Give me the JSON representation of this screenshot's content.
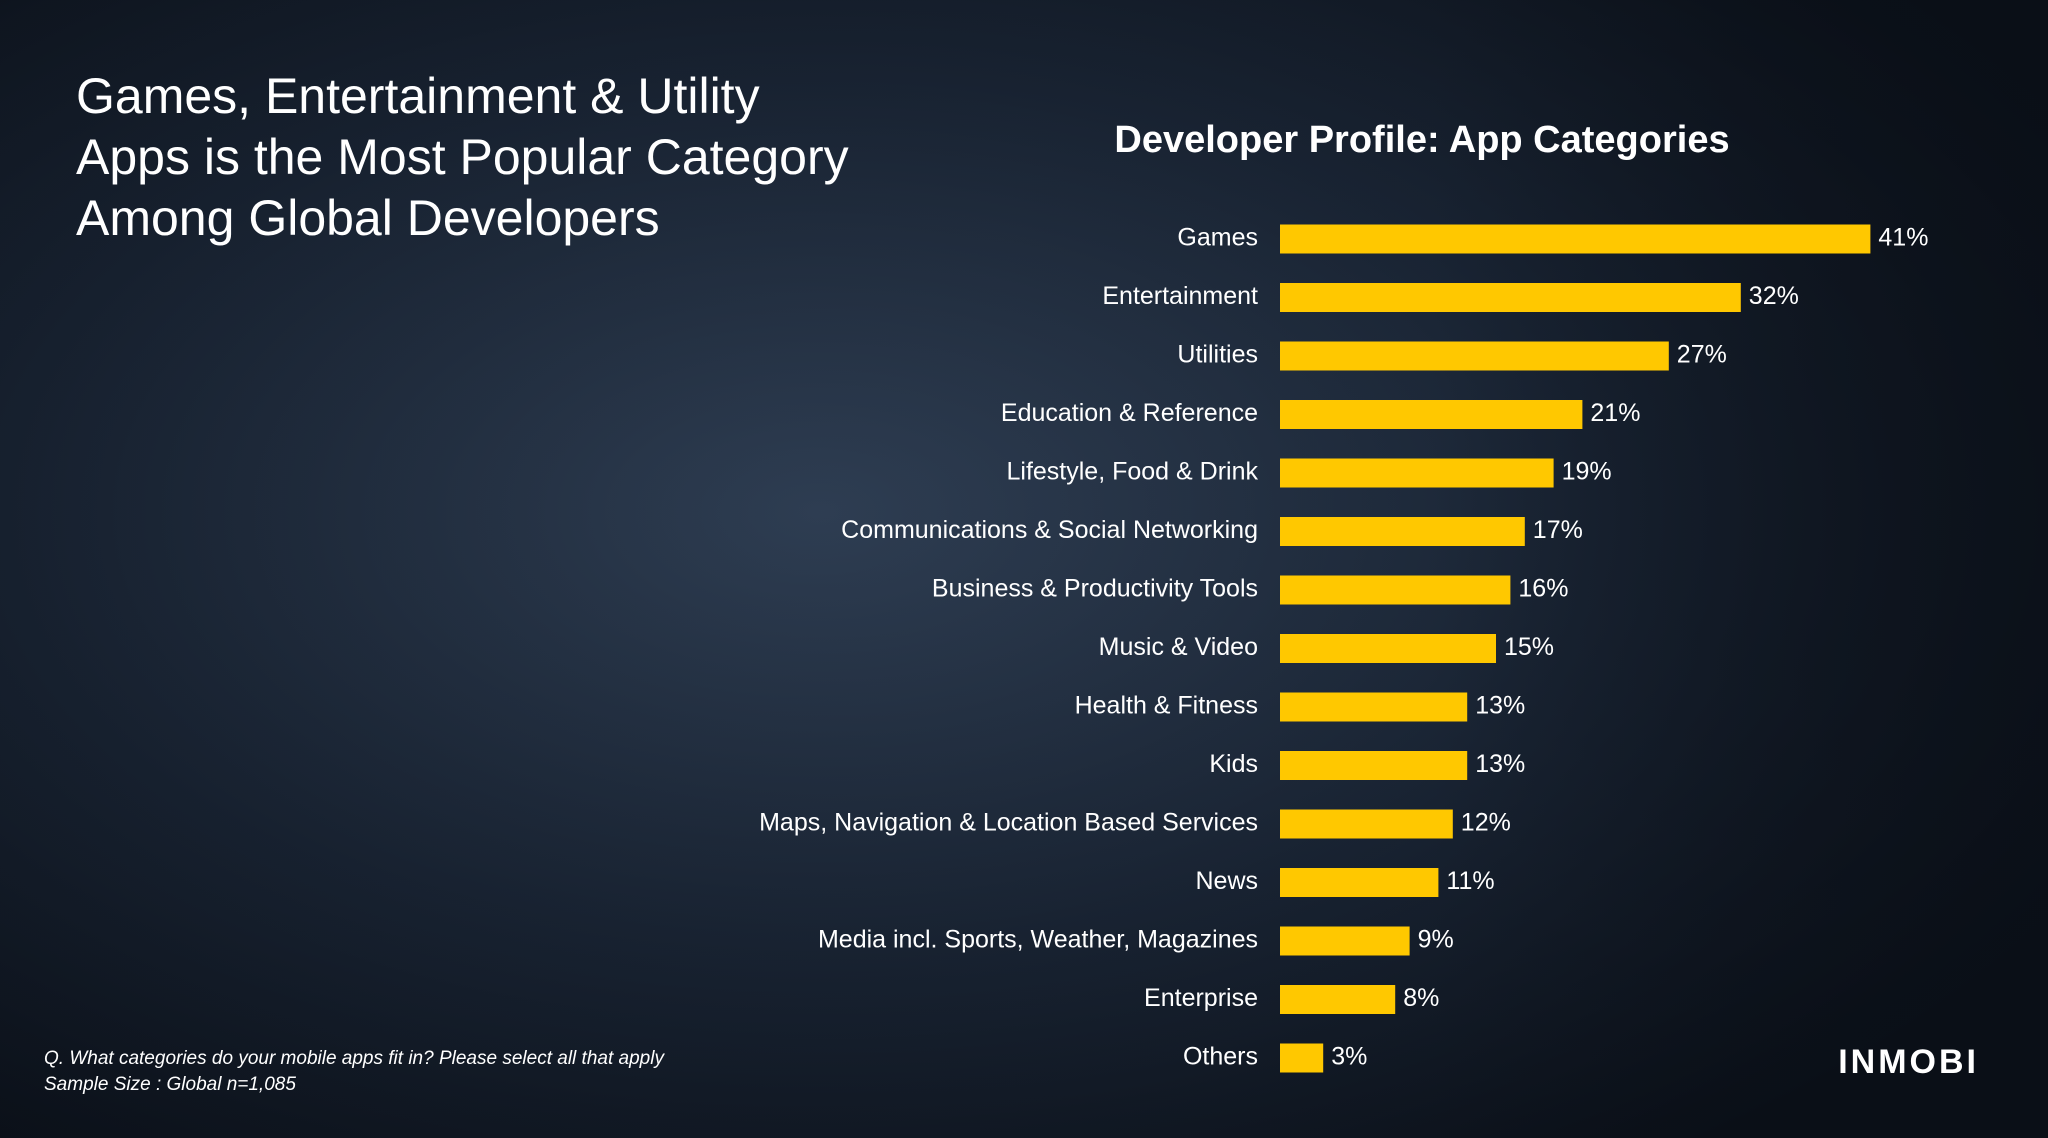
{
  "headline": [
    "Games, Entertainment & Utility",
    "Apps is the Most Popular Category",
    "Among Global Developers"
  ],
  "footnote": [
    "Q. What categories do your mobile apps fit in? Please select all that apply",
    "Sample Size : Global n=1,085"
  ],
  "logo": "INMOBI",
  "chart_data": {
    "type": "bar",
    "orientation": "horizontal",
    "title": "Developer Profile:  App Categories",
    "categories": [
      "Games",
      "Entertainment",
      "Utilities",
      "Education & Reference",
      "Lifestyle, Food & Drink",
      "Communications & Social Networking",
      "Business & Productivity Tools",
      "Music & Video",
      "Health & Fitness",
      "Kids",
      "Maps, Navigation & Location Based Services",
      "News",
      "Media incl. Sports, Weather, Magazines",
      "Enterprise",
      "Others"
    ],
    "values": [
      41,
      32,
      27,
      21,
      19,
      17,
      16,
      15,
      13,
      13,
      12,
      11,
      9,
      8,
      3
    ],
    "value_labels": [
      "41%",
      "32%",
      "27%",
      "21%",
      "19%",
      "17%",
      "16%",
      "15%",
      "13%",
      "13%",
      "12%",
      "11%",
      "9%",
      "8%",
      "3%"
    ],
    "color": "#ffc800"
  }
}
